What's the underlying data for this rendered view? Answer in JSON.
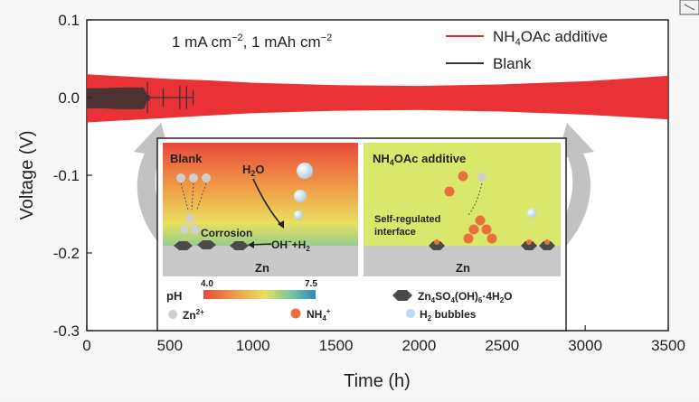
{
  "chart_data": {
    "type": "line",
    "condition_prefix": "1 mA cm",
    "condition_sup1": "−2",
    "condition_mid": ", 1 mAh cm",
    "condition_sup2": "−2",
    "xlabel": "Time (h)",
    "ylabel": "Voltage (V)",
    "xlim": [
      0,
      3500
    ],
    "ylim": [
      -0.3,
      0.1
    ],
    "x_ticks": [
      "0",
      "500",
      "1000",
      "1500",
      "2000",
      "2500",
      "3000",
      "3500"
    ],
    "y_ticks": [
      "0.1",
      "0.0",
      "-0.1",
      "-0.2",
      "-0.3"
    ],
    "x_tick_values": [
      0,
      500,
      1000,
      1500,
      2000,
      2500,
      3000,
      3500
    ],
    "y_tick_values": [
      0.1,
      0.0,
      -0.1,
      -0.2,
      -0.3
    ],
    "legend_position": "top-right",
    "series": [
      {
        "name_main": "NH",
        "name_sub": "4",
        "name_rest": "OAc additive",
        "color": "#e8272b",
        "x": [
          0,
          250,
          500,
          750,
          1000,
          1500,
          2000,
          2500,
          3000,
          3500
        ],
        "upper": [
          0.03,
          0.027,
          0.024,
          0.022,
          0.019,
          0.016,
          0.015,
          0.017,
          0.021,
          0.028
        ],
        "lower": [
          -0.032,
          -0.029,
          -0.026,
          -0.023,
          -0.02,
          -0.017,
          -0.016,
          -0.018,
          -0.022,
          -0.028
        ]
      },
      {
        "name": "Blank",
        "color": "#333333",
        "x": [
          0,
          100,
          200,
          300,
          340,
          350,
          360,
          380
        ],
        "upper": [
          0.012,
          0.012,
          0.013,
          0.013,
          0.013,
          0.01,
          0.004,
          0.003
        ],
        "lower": [
          -0.014,
          -0.014,
          -0.015,
          -0.015,
          -0.015,
          -0.012,
          -0.005,
          -0.004
        ]
      }
    ],
    "blank_spikes": [
      {
        "x": 365,
        "top": 0.02,
        "bottom": -0.02
      },
      {
        "x": 460,
        "top": 0.012,
        "bottom": -0.012
      },
      {
        "x": 560,
        "top": 0.015,
        "bottom": -0.015
      },
      {
        "x": 600,
        "top": 0.015,
        "bottom": -0.015
      },
      {
        "x": 640,
        "top": 0.01,
        "bottom": -0.01
      }
    ]
  },
  "inset": {
    "left_panel": {
      "title": "Blank",
      "h2o_main": "H",
      "h2o_sub": "2",
      "h2o_rest": "O",
      "corrosion": "Corrosion",
      "reaction_main": "OH",
      "reaction_sup": "−",
      "reaction_rest": "+H",
      "reaction_sub": "2",
      "substrate": "Zn"
    },
    "right_panel": {
      "title_main": "NH",
      "title_sub": "4",
      "title_rest": "OAc additive",
      "note_line1": "Self-regulated",
      "note_line2": "interface",
      "substrate": "Zn"
    },
    "legend": {
      "ph_label": "pH",
      "ph_min": "4.0",
      "ph_max": "7.5",
      "zn_main": "Zn",
      "zn_sup": "2+",
      "nh4_main": "NH",
      "nh4_sub": "4",
      "nh4_sup": "+",
      "byproduct_main": "Zn",
      "byproduct_parts": [
        "4",
        "SO",
        "4",
        "(OH)",
        "6",
        "·4H",
        "2",
        "O"
      ],
      "h2_main": "H",
      "h2_sub": "2",
      "h2_rest": " bubbles"
    },
    "colors": {
      "ph_low": "#e84a3c",
      "ph_high": "#2f7fc1",
      "additive_bg": "#d8e86a",
      "ion_zn": "#c8c8c8",
      "ion_nh4": "#e8703a",
      "bubble_h2": "#bcd8ee",
      "arrow": "#b8b8b8"
    }
  }
}
